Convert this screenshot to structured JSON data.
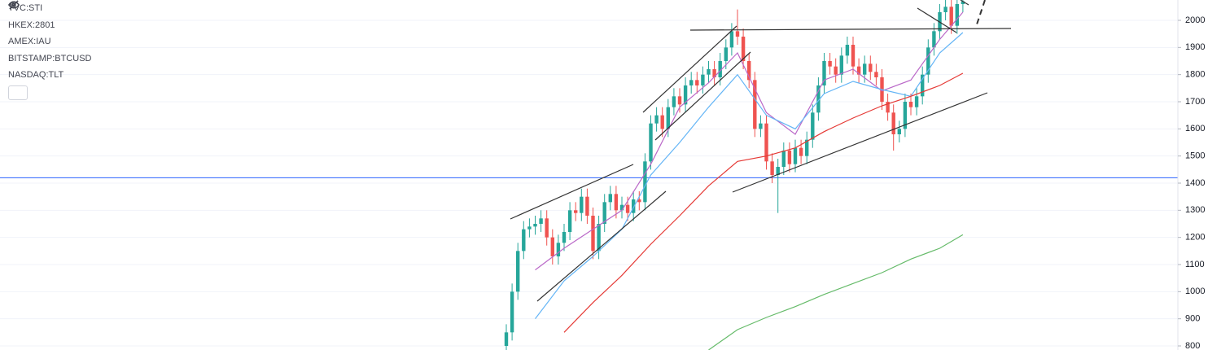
{
  "symbols": [
    "TVC:STI",
    "HKEX:2801",
    "AMEX:IAU",
    "BITSTAMP:BTCUSD",
    "NASDAQ:TLT"
  ],
  "chart_data": {
    "type": "candlestick",
    "up_color": "#26a69a",
    "down_color": "#ef5350",
    "ylim": [
      785,
      2075
    ],
    "yticks": [
      800,
      900,
      1000,
      1100,
      1200,
      1300,
      1400,
      1500,
      1600,
      1700,
      1800,
      1900,
      2000
    ],
    "grid": true,
    "hline": {
      "value": 1420,
      "color": "#2962ff"
    },
    "open": [
      800,
      850,
      1000,
      1150,
      1230,
      1240,
      1250,
      1270,
      1200,
      1130,
      1180,
      1220,
      1300,
      1290,
      1350,
      1280,
      1150,
      1250,
      1330,
      1360,
      1300,
      1320,
      1290,
      1340,
      1330,
      1480,
      1620,
      1650,
      1600,
      1680,
      1720,
      1690,
      1760,
      1780,
      1760,
      1800,
      1820,
      1790,
      1850,
      1900,
      1960,
      1940,
      1850,
      1780,
      1600,
      1620,
      1480,
      1430,
      1460,
      1520,
      1470,
      1530,
      1500,
      1560,
      1660,
      1760,
      1850,
      1830,
      1800,
      1870,
      1910,
      1830,
      1800,
      1840,
      1810,
      1790,
      1700,
      1660,
      1580,
      1600,
      1700,
      1680,
      1720,
      1800,
      1900,
      1960,
      2030,
      2050,
      1980,
      2060
    ],
    "high": [
      880,
      1030,
      1180,
      1260,
      1270,
      1280,
      1300,
      1300,
      1230,
      1210,
      1250,
      1330,
      1330,
      1380,
      1380,
      1310,
      1280,
      1360,
      1390,
      1390,
      1350,
      1350,
      1370,
      1370,
      1510,
      1650,
      1680,
      1680,
      1710,
      1750,
      1750,
      1790,
      1810,
      1810,
      1830,
      1850,
      1850,
      1880,
      1930,
      1990,
      2040,
      1970,
      1880,
      1810,
      1650,
      1650,
      1510,
      1490,
      1550,
      1550,
      1560,
      1560,
      1590,
      1690,
      1790,
      1880,
      1880,
      1860,
      1900,
      1940,
      1940,
      1860,
      1870,
      1870,
      1840,
      1820,
      1730,
      1690,
      1630,
      1730,
      1730,
      1750,
      1830,
      1930,
      1990,
      2060,
      2080,
      2080,
      2090,
      2100
    ],
    "low": [
      770,
      820,
      970,
      1120,
      1200,
      1210,
      1220,
      1170,
      1100,
      1100,
      1150,
      1190,
      1260,
      1260,
      1250,
      1120,
      1120,
      1220,
      1300,
      1270,
      1270,
      1260,
      1260,
      1300,
      1300,
      1450,
      1590,
      1570,
      1570,
      1650,
      1660,
      1660,
      1730,
      1730,
      1730,
      1770,
      1760,
      1760,
      1820,
      1870,
      1910,
      1820,
      1750,
      1570,
      1570,
      1450,
      1400,
      1290,
      1430,
      1440,
      1440,
      1470,
      1470,
      1530,
      1630,
      1730,
      1800,
      1770,
      1770,
      1840,
      1800,
      1770,
      1770,
      1780,
      1760,
      1670,
      1630,
      1520,
      1550,
      1570,
      1650,
      1650,
      1690,
      1770,
      1870,
      1930,
      2000,
      1950,
      1950,
      2030
    ],
    "close": [
      850,
      1000,
      1150,
      1230,
      1240,
      1250,
      1270,
      1200,
      1130,
      1180,
      1220,
      1300,
      1290,
      1350,
      1280,
      1150,
      1250,
      1330,
      1360,
      1300,
      1320,
      1290,
      1340,
      1330,
      1480,
      1620,
      1650,
      1600,
      1680,
      1720,
      1690,
      1760,
      1780,
      1760,
      1800,
      1820,
      1790,
      1850,
      1900,
      1960,
      1940,
      1850,
      1780,
      1600,
      1620,
      1480,
      1430,
      1460,
      1520,
      1470,
      1530,
      1500,
      1560,
      1660,
      1760,
      1850,
      1830,
      1800,
      1870,
      1910,
      1830,
      1800,
      1840,
      1810,
      1790,
      1700,
      1660,
      1580,
      1600,
      1700,
      1680,
      1720,
      1800,
      1900,
      1960,
      2030,
      2050,
      1980,
      2060,
      2070
    ],
    "indicators": [
      {
        "color": "#ba68c8",
        "x": [
          5,
          10,
          15,
          20,
          25,
          30,
          35,
          40,
          45,
          50,
          55,
          60,
          65,
          70,
          75,
          79
        ],
        "values": [
          1080,
          1160,
          1230,
          1300,
          1470,
          1680,
          1770,
          1880,
          1660,
          1580,
          1780,
          1820,
          1740,
          1780,
          1930,
          2030
        ]
      },
      {
        "color": "#64b5f6",
        "x": [
          5,
          10,
          15,
          20,
          25,
          30,
          35,
          40,
          45,
          50,
          55,
          60,
          65,
          70,
          75,
          79
        ],
        "values": [
          900,
          1040,
          1130,
          1230,
          1430,
          1550,
          1680,
          1800,
          1650,
          1600,
          1730,
          1775,
          1745,
          1720,
          1880,
          1955
        ]
      },
      {
        "color": "#e53935",
        "x": [
          10,
          15,
          20,
          25,
          30,
          35,
          40,
          45,
          50,
          55,
          60,
          65,
          70,
          75,
          79
        ],
        "values": [
          850,
          960,
          1060,
          1175,
          1280,
          1390,
          1480,
          1500,
          1530,
          1590,
          1640,
          1685,
          1720,
          1760,
          1805
        ]
      },
      {
        "color": "#66bb6a",
        "x": [
          35,
          40,
          45,
          50,
          55,
          60,
          65,
          70,
          75,
          79
        ],
        "values": [
          785,
          860,
          905,
          945,
          990,
          1030,
          1070,
          1120,
          1160,
          1210
        ]
      }
    ]
  }
}
